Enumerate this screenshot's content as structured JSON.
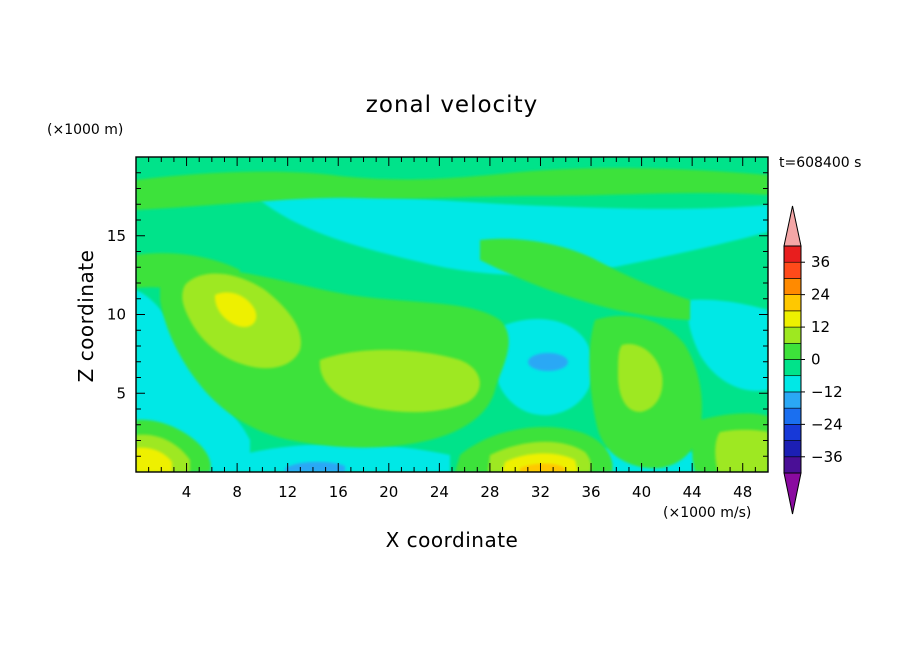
{
  "chart_data": {
    "type": "heatmap",
    "title": "zonal velocity",
    "xlabel": "X coordinate",
    "ylabel": "Z coordinate",
    "y_unit": "(×1000 m)",
    "colorbar_unit": "(×1000 m/s)",
    "time_label": "t=608400 s",
    "xlim": [
      0,
      50
    ],
    "ylim": [
      0,
      20
    ],
    "x_ticks": [
      "4",
      "8",
      "12",
      "16",
      "20",
      "24",
      "28",
      "32",
      "36",
      "40",
      "44",
      "48"
    ],
    "y_ticks": [
      "5",
      "10",
      "15"
    ],
    "colorbar_ticks": [
      "36",
      "24",
      "12",
      "0",
      "−12",
      "−24",
      "−36"
    ],
    "colorbar_extend": "both",
    "levels": [
      -42,
      -36,
      -30,
      -24,
      -18,
      -12,
      -6,
      0,
      6,
      12,
      18,
      24,
      30,
      36,
      42
    ],
    "colors": [
      "#8a0aa0",
      "#4a0f96",
      "#1c1fb4",
      "#1739d8",
      "#1a6ff0",
      "#2aa8f5",
      "#00e8e6",
      "#00e38a",
      "#3de23a",
      "#9ee820",
      "#eef000",
      "#ffc800",
      "#ff8a00",
      "#ff4a1a",
      "#e81e1e",
      "#f4a6a6"
    ],
    "features": [
      {
        "x": 8,
        "z": 10,
        "value": 12
      },
      {
        "x": 22,
        "z": 6,
        "value": 10
      },
      {
        "x": 32,
        "z": 7,
        "value": -14
      },
      {
        "x": 39,
        "z": 6,
        "value": 8
      },
      {
        "x": 32,
        "z": 0.5,
        "value": 20
      },
      {
        "x": 1,
        "z": 1,
        "value": 18
      },
      {
        "x": 15,
        "z": 0.5,
        "value": -10
      },
      {
        "x": 47,
        "z": 1,
        "value": 14
      }
    ]
  }
}
